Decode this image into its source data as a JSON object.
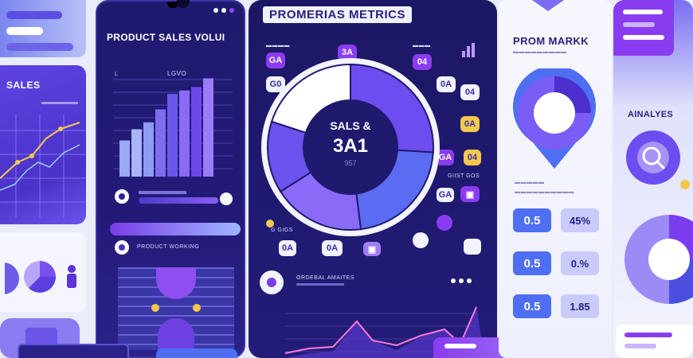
{
  "left": {
    "sales_title": "SALES",
    "colors": {
      "panel": "#5340d6",
      "line_yellow": "#f2c94c"
    }
  },
  "product_panel": {
    "title": "PRODUCT SALES VOLUI",
    "axis_labels": [
      "L",
      "LGVO"
    ],
    "bar_values": [
      42,
      55,
      63,
      78,
      96,
      100,
      104,
      114
    ],
    "legend_caption": "PRODUCT WORKING"
  },
  "metrics": {
    "title": "PROMERIAS METRICS",
    "center_label": "SALS &",
    "center_value": "3A1",
    "center_sub": "957",
    "chips_left": [
      "GA",
      "G0"
    ],
    "chip_top": "3A",
    "chips_right": [
      "04",
      "0A",
      "04",
      "0A",
      "GA",
      "04",
      "GA"
    ],
    "chips_bottom": [
      "0A",
      "0A"
    ],
    "caption_right": "GIIST GOS",
    "caption_left": "G GIGS",
    "summary_label": "ORDEBAL AMAITES",
    "donut_segments": [
      {
        "value": 26,
        "color": "#6d4cf0"
      },
      {
        "value": 22,
        "color": "#5b6cf2"
      },
      {
        "value": 18,
        "color": "#8a6bf7"
      },
      {
        "value": 14,
        "color": "#6b53ee"
      },
      {
        "value": 20,
        "color": "#ffffff"
      }
    ]
  },
  "right_panel": {
    "title": "PROM MARKK",
    "stats": [
      {
        "left": "0.5",
        "right": "45%"
      },
      {
        "left": "0.5",
        "right": "0.%"
      },
      {
        "left": "0.5",
        "right": "1.85"
      }
    ]
  },
  "far_right": {
    "title": "AINALYES"
  }
}
